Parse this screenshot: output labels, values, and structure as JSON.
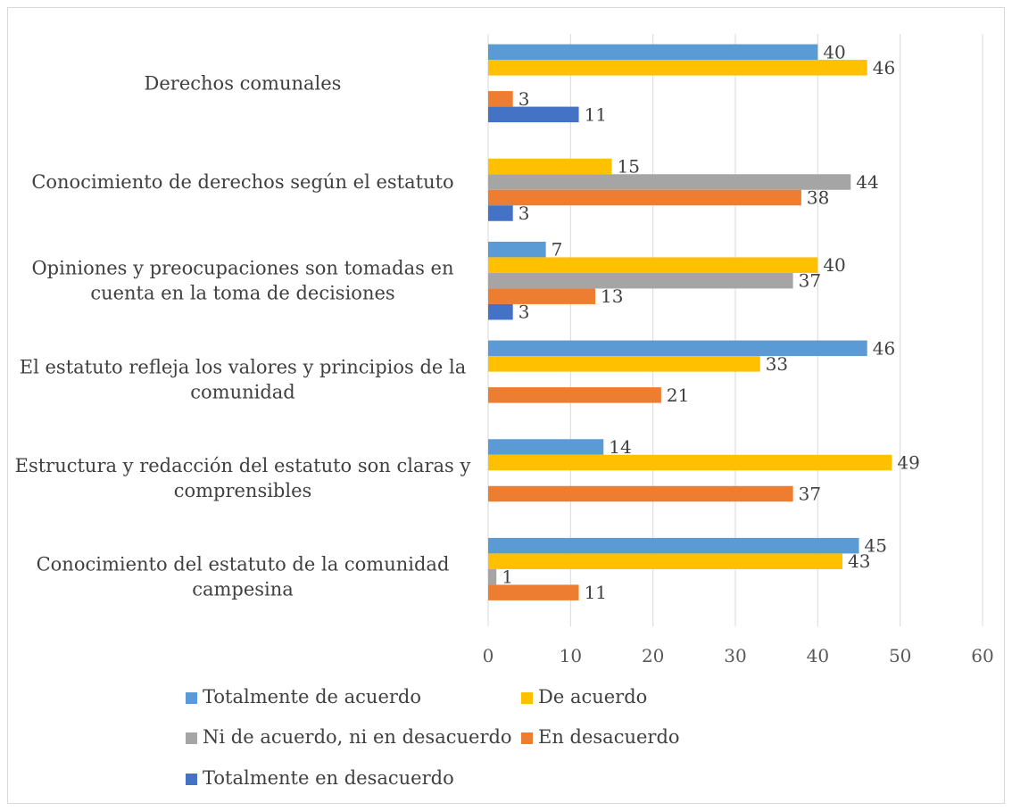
{
  "chart_data": {
    "type": "bar",
    "orientation": "horizontal",
    "categories": [
      "Derechos comunales",
      "Conocimiento de derechos según el estatuto",
      "Opiniones y preocupaciones son tomadas en cuenta en la toma de decisiones",
      "El estatuto refleja los valores y principios de la comunidad",
      "Estructura y redacción del estatuto son claras y comprensibles",
      "Conocimiento del estatuto de la comunidad campesina"
    ],
    "series": [
      {
        "name": "Totalmente de acuerdo",
        "color": "#5b9bd5",
        "values": [
          40,
          null,
          7,
          46,
          14,
          45
        ]
      },
      {
        "name": "De acuerdo",
        "color": "#ffc000",
        "values": [
          46,
          15,
          40,
          33,
          49,
          43
        ]
      },
      {
        "name": "Ni de acuerdo, ni en desacuerdo",
        "color": "#a5a5a5",
        "values": [
          null,
          44,
          37,
          null,
          null,
          1
        ]
      },
      {
        "name": "En desacuerdo",
        "color": "#ed7d31",
        "values": [
          3,
          38,
          13,
          21,
          37,
          11
        ]
      },
      {
        "name": "Totalmente en desacuerdo",
        "color": "#4472c4",
        "values": [
          11,
          3,
          3,
          null,
          null,
          null
        ]
      }
    ],
    "xlim": [
      0,
      60
    ],
    "xticks": [
      0,
      10,
      20,
      30,
      40,
      50,
      60
    ],
    "grid": true,
    "legend_position": "bottom",
    "title": "",
    "xlabel": "",
    "ylabel": ""
  }
}
